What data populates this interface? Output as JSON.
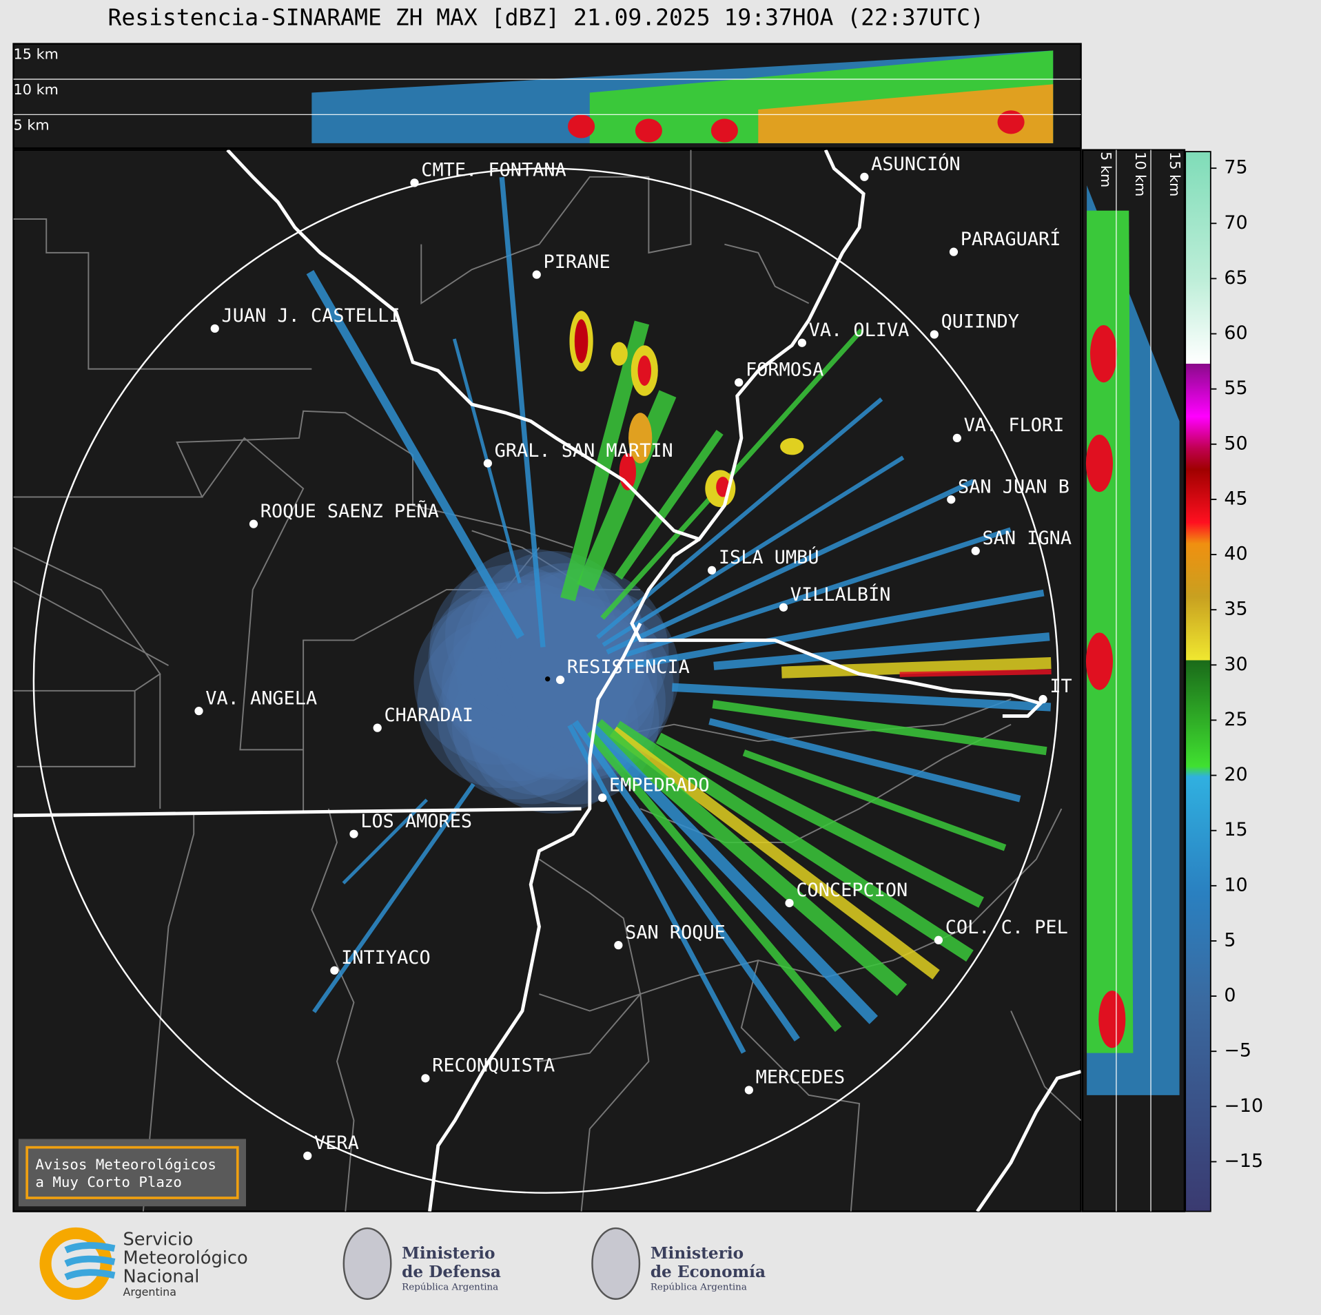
{
  "title": "Resistencia-SINARAME ZH MAX [dBZ] 21.09.2025 19:37HOA (22:37UTC)",
  "top_panel": {
    "height_labels": [
      "15 km",
      "10 km",
      "5 km"
    ]
  },
  "right_panel": {
    "height_labels": [
      "5 km",
      "10 km",
      "15 km"
    ]
  },
  "cities": [
    "CMTE. FONTANA",
    "PIRANE",
    "JUAN J. CASTELLI",
    "GRAL. SAN MARTIN",
    "ROQUE SAENZ PEÑA",
    "VA. ANGELA",
    "CHARADAI",
    "RESISTENCIA",
    "EMPEDRADO",
    "LOS AMORES",
    "INTIYACO",
    "SAN ROQUE",
    "RECONQUISTA",
    "VERA",
    "MERCEDES",
    "CONCEPCION",
    "COL. C. PEL",
    "ASUNCIÓN",
    "PARAGUARÍ",
    "QUIINDY",
    "VA. OLIVA",
    "FORMOSA",
    "VA. FLORI",
    "SAN JUAN B",
    "SAN IGNA",
    "ISLA UMBÚ",
    "VILLALBÍN",
    "IT"
  ],
  "colorbar": {
    "lim": [
      -19.5,
      76.5
    ],
    "ticks": [
      75,
      70,
      65,
      60,
      55,
      50,
      45,
      40,
      35,
      30,
      25,
      20,
      15,
      10,
      5,
      0,
      {
        "value": -5,
        "label": "−5"
      },
      {
        "value": -10,
        "label": "−10"
      },
      {
        "value": -15,
        "label": "−15"
      }
    ]
  },
  "warning_box": [
    "Avisos Meteorológicos",
    "a Muy Corto Plazo"
  ],
  "footer": {
    "smn": [
      "Servicio",
      "Meteorológico",
      "Nacional",
      "Argentina"
    ],
    "defensa": [
      "Ministerio",
      "de Defensa",
      "República Argentina"
    ],
    "economia": [
      "Ministerio",
      "de Economía",
      "República Argentina"
    ]
  }
}
